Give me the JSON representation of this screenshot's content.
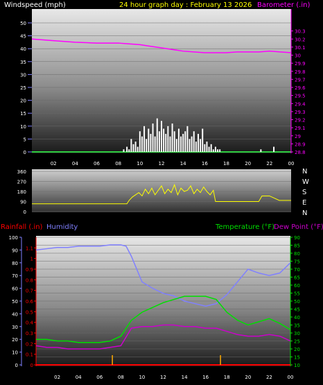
{
  "colors": {
    "background": "#000000",
    "wind": "#ffffff",
    "gust_base": "#2ecc40",
    "barometer": "#ff00ff",
    "direction": "#ffff00",
    "rainfall": "#ff0000",
    "humidity": "#8080ff",
    "temperature": "#00e000",
    "dewpoint": "#cc00cc",
    "title": "#ffff00",
    "axis_text": "#ffffff"
  },
  "header": {
    "windspeed_label": "Windspeed (mph)",
    "title": "24 hour graph day : February 13 2026",
    "barometer_label": "Barometer (.in)"
  },
  "lower_header": {
    "rainfall_label": "Rainfall (.in)",
    "humidity_label": "Humidity",
    "temperature_label": "Temperature (°F)",
    "dewpoint_label": "Dew Point (°F)"
  },
  "x_ticks": [
    "02",
    "04",
    "06",
    "08",
    "10",
    "12",
    "14",
    "16",
    "18",
    "20",
    "22",
    "00"
  ],
  "compass": [
    "N",
    "W",
    "S",
    "E",
    "N"
  ],
  "chart_data": [
    {
      "type": "bar",
      "panel": "wind_barometer",
      "x_range_hours": [
        0,
        24
      ],
      "left_axis": {
        "label": "Windspeed (mph)",
        "ylim": [
          0,
          50
        ],
        "ticks": [
          0,
          5,
          10,
          15,
          20,
          25,
          30,
          35,
          40,
          45,
          50
        ]
      },
      "right_axis": {
        "label": "Barometer (.in)",
        "ylim": [
          28.8,
          30.4
        ],
        "ticks": [
          "28.8",
          "28.9",
          "29",
          "29.1",
          "29.2",
          "29.3",
          "29.4",
          "29.5",
          "29.6",
          "29.7",
          "29.8",
          "29.9",
          "30",
          "30.1",
          "30.2",
          "30.3"
        ]
      },
      "series": [
        {
          "name": "Windspeed",
          "axis": "left",
          "style": "bars",
          "x": [
            8.5,
            8.8,
            9.0,
            9.2,
            9.4,
            9.6,
            9.8,
            10.0,
            10.2,
            10.4,
            10.6,
            10.8,
            11.0,
            11.2,
            11.4,
            11.6,
            11.8,
            12.0,
            12.2,
            12.4,
            12.6,
            12.8,
            13.0,
            13.2,
            13.4,
            13.6,
            13.8,
            14.0,
            14.2,
            14.4,
            14.6,
            14.8,
            15.0,
            15.2,
            15.4,
            15.6,
            15.8,
            16.0,
            16.2,
            16.4,
            16.6,
            16.8,
            17.0,
            17.2,
            17.4,
            21.2,
            22.4
          ],
          "values": [
            1,
            2,
            1,
            5,
            3,
            4,
            2,
            8,
            6,
            10,
            5,
            9,
            7,
            11,
            6,
            13,
            8,
            12,
            9,
            7,
            10,
            6,
            11,
            8,
            5,
            9,
            6,
            7,
            8,
            10,
            5,
            6,
            8,
            4,
            7,
            5,
            9,
            3,
            4,
            2,
            3,
            1,
            2,
            1,
            1,
            1,
            2
          ]
        },
        {
          "name": "Barometer",
          "axis": "right",
          "style": "line",
          "x": [
            0,
            2,
            4,
            6,
            8,
            9,
            10,
            11,
            12,
            13,
            14,
            15,
            16,
            17,
            18,
            19,
            20,
            21,
            22,
            23,
            24
          ],
          "values": [
            30.2,
            30.18,
            30.16,
            30.15,
            30.15,
            30.14,
            30.13,
            30.11,
            30.09,
            30.07,
            30.05,
            30.04,
            30.03,
            30.03,
            30.03,
            30.04,
            30.04,
            30.04,
            30.05,
            30.04,
            30.03
          ]
        }
      ]
    },
    {
      "type": "line",
      "panel": "wind_direction",
      "x_range_hours": [
        0,
        24
      ],
      "left_axis": {
        "ylim": [
          0,
          360
        ],
        "ticks": [
          0,
          90,
          180,
          270,
          360
        ]
      },
      "series": [
        {
          "name": "Wind Direction",
          "x": [
            0,
            2,
            4,
            6,
            8,
            8.8,
            9.0,
            9.3,
            9.6,
            9.9,
            10.2,
            10.5,
            10.8,
            11.1,
            11.4,
            11.7,
            12.0,
            12.3,
            12.6,
            12.9,
            13.2,
            13.5,
            13.8,
            14.1,
            14.4,
            14.7,
            15.0,
            15.3,
            15.6,
            15.9,
            16.2,
            16.5,
            16.8,
            17.0,
            18,
            19,
            20,
            21,
            21.3,
            22,
            22.9,
            24
          ],
          "values": [
            70,
            70,
            70,
            70,
            70,
            70,
            100,
            130,
            150,
            170,
            140,
            200,
            160,
            210,
            150,
            190,
            230,
            160,
            200,
            170,
            240,
            150,
            210,
            180,
            190,
            230,
            160,
            200,
            170,
            220,
            180,
            150,
            190,
            90,
            90,
            90,
            90,
            90,
            140,
            140,
            100,
            100
          ]
        }
      ]
    },
    {
      "type": "line",
      "panel": "temperature_humidity",
      "x_range_hours": [
        0,
        24
      ],
      "left_axis_outer": {
        "label": "Humidity",
        "ylim": [
          0,
          100
        ],
        "ticks": [
          0,
          10,
          20,
          30,
          40,
          50,
          60,
          70,
          80,
          90,
          100
        ]
      },
      "left_axis_inner": {
        "label": "Rainfall (.in)",
        "ylim": [
          0,
          1.2
        ],
        "ticks": [
          "0",
          "0.1",
          "0.2",
          "0.3",
          "0.4",
          "0.5",
          "0.6",
          "0.7",
          "0.8",
          "0.9",
          "1",
          "1.1"
        ]
      },
      "right_axis": {
        "label": "Temperature (°F)",
        "ylim": [
          10,
          90
        ],
        "ticks": [
          10,
          15,
          20,
          25,
          30,
          35,
          40,
          45,
          50,
          55,
          60,
          65,
          70,
          75,
          80,
          85,
          90
        ]
      },
      "series": [
        {
          "name": "Humidity",
          "axis": "left_outer",
          "x": [
            0,
            1,
            2,
            3,
            4,
            5,
            6,
            7,
            8,
            8.5,
            9,
            10,
            11,
            12,
            13,
            14,
            15,
            16,
            17,
            18,
            19,
            19.5,
            20,
            21,
            22,
            23,
            24
          ],
          "values": [
            90,
            91,
            92,
            92,
            93,
            93,
            93,
            94,
            94,
            93,
            85,
            65,
            60,
            56,
            54,
            50,
            48,
            46,
            48,
            55,
            65,
            70,
            75,
            72,
            70,
            72,
            80
          ]
        },
        {
          "name": "Rainfall",
          "axis": "left_inner",
          "x": [
            0,
            24
          ],
          "values": [
            0,
            0
          ]
        },
        {
          "name": "Temperature",
          "axis": "right",
          "x": [
            0,
            1,
            2,
            3,
            4,
            5,
            6,
            7,
            8,
            9,
            10,
            11,
            12,
            13,
            14,
            15,
            16,
            17,
            18,
            19,
            20,
            21,
            22,
            23,
            24
          ],
          "values": [
            26,
            26,
            25,
            25,
            24,
            24,
            24,
            25,
            28,
            38,
            43,
            46,
            49,
            51,
            53,
            53,
            53,
            51,
            43,
            38,
            35,
            37,
            39,
            36,
            32
          ]
        },
        {
          "name": "Dew Point",
          "axis": "right",
          "x": [
            0,
            1,
            2,
            3,
            4,
            5,
            6,
            7,
            8,
            9,
            10,
            11,
            12,
            13,
            14,
            15,
            16,
            17,
            18,
            19,
            20,
            21,
            22,
            23,
            24
          ],
          "values": [
            22,
            21,
            21,
            20,
            20,
            20,
            20,
            21,
            22,
            33,
            34,
            34,
            35,
            35,
            34,
            34,
            33,
            33,
            31,
            29,
            28,
            28,
            29,
            28,
            25
          ]
        }
      ],
      "markers_x": [
        7.2,
        17.4
      ]
    }
  ]
}
